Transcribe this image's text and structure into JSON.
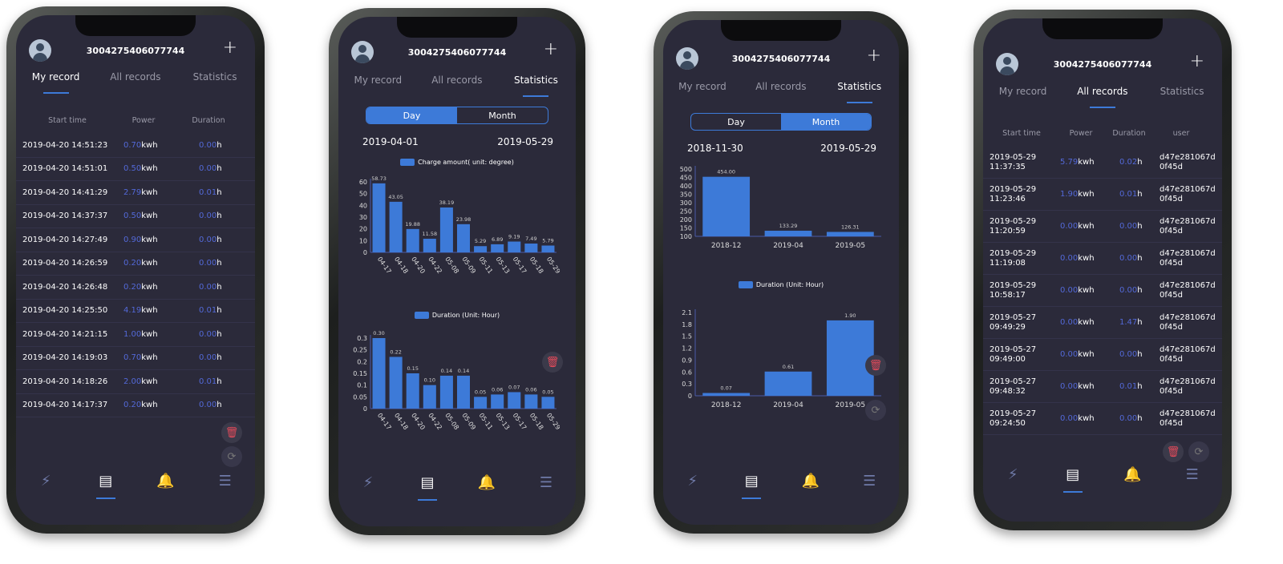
{
  "colors": {
    "accent": "#3d7ad8",
    "value_blue": "#5369d8",
    "screen_bg": "#2b2a3a",
    "delete": "#e34b5b"
  },
  "header": {
    "title": "3004275406077744",
    "add_label": "+",
    "avatar_icon": "user-avatar-icon"
  },
  "tabs": [
    "My record",
    "All records",
    "Statistics"
  ],
  "segment": [
    "Day",
    "Month"
  ],
  "nav_icons": [
    "lightning-icon",
    "record-icon",
    "bell-icon",
    "menu-icon"
  ],
  "units": {
    "power": "kwh",
    "duration": "h"
  },
  "phones": [
    {
      "active_tab": 0,
      "columns": [
        "Start time",
        "Power",
        "Duration"
      ],
      "rows": [
        [
          "2019-04-20 14:51:23",
          "0.70",
          "0.00"
        ],
        [
          "2019-04-20 14:51:01",
          "0.50",
          "0.00"
        ],
        [
          "2019-04-20 14:41:29",
          "2.79",
          "0.01"
        ],
        [
          "2019-04-20 14:37:37",
          "0.50",
          "0.00"
        ],
        [
          "2019-04-20 14:27:49",
          "0.90",
          "0.00"
        ],
        [
          "2019-04-20 14:26:59",
          "0.20",
          "0.00"
        ],
        [
          "2019-04-20 14:26:48",
          "0.20",
          "0.00"
        ],
        [
          "2019-04-20 14:25:50",
          "4.19",
          "0.01"
        ],
        [
          "2019-04-20 14:21:15",
          "1.00",
          "0.00"
        ],
        [
          "2019-04-20 14:19:03",
          "0.70",
          "0.00"
        ],
        [
          "2019-04-20 14:18:26",
          "2.00",
          "0.01"
        ],
        [
          "2019-04-20 14:17:37",
          "0.20",
          "0.00"
        ]
      ]
    },
    {
      "active_tab": 2,
      "active_segment": 0,
      "date_from": "2019-04-01",
      "date_to": "2019-05-29"
    },
    {
      "active_tab": 2,
      "active_segment": 1,
      "date_from": "2018-11-30",
      "date_to": "2019-05-29"
    },
    {
      "active_tab": 1,
      "columns": [
        "Start time",
        "Power",
        "Duration",
        "user"
      ],
      "rows": [
        [
          "2019-05-29",
          "11:37:35",
          "5.79",
          "0.02",
          "d47e281067d",
          "0f45d"
        ],
        [
          "2019-05-29",
          "11:23:46",
          "1.90",
          "0.01",
          "d47e281067d",
          "0f45d"
        ],
        [
          "2019-05-29",
          "11:20:59",
          "0.00",
          "0.00",
          "d47e281067d",
          "0f45d"
        ],
        [
          "2019-05-29",
          "11:19:08",
          "0.00",
          "0.00",
          "d47e281067d",
          "0f45d"
        ],
        [
          "2019-05-29",
          "10:58:17",
          "0.00",
          "0.00",
          "d47e281067d",
          "0f45d"
        ],
        [
          "2019-05-27",
          "09:49:29",
          "0.00",
          "1.47",
          "d47e281067d",
          "0f45d"
        ],
        [
          "2019-05-27",
          "09:49:00",
          "0.00",
          "0.00",
          "d47e281067d",
          "0f45d"
        ],
        [
          "2019-05-27",
          "09:48:32",
          "0.00",
          "0.01",
          "d47e281067d",
          "0f45d"
        ],
        [
          "2019-05-27",
          "09:24:50",
          "0.00",
          "0.00",
          "d47e281067d",
          "0f45d"
        ]
      ]
    }
  ],
  "chart_data": [
    {
      "type": "bar",
      "phone": 2,
      "legend": "Charge amount( unit: degree)",
      "categories": [
        "04-17",
        "04-18",
        "04-20",
        "04-22",
        "05-08",
        "05-09",
        "05-11",
        "05-13",
        "05-17",
        "05-18",
        "05-29"
      ],
      "values": [
        58.73,
        43.05,
        19.88,
        11.58,
        38.19,
        23.98,
        5.29,
        6.89,
        9.19,
        7.49,
        5.79
      ],
      "labels": [
        "58.73",
        "43.05",
        "19.88",
        "11.58",
        "38.19",
        "23.98",
        "5.29",
        "6.89",
        "9.19",
        "7.49",
        "5.79"
      ],
      "ylim": [
        0,
        60
      ],
      "yticks": [
        "0",
        "10",
        "20",
        "30",
        "40",
        "50",
        "60"
      ],
      "grid": false
    },
    {
      "type": "bar",
      "phone": 2,
      "legend": "Duration (Unit: Hour)",
      "categories": [
        "04-17",
        "04-18",
        "04-20",
        "04-22",
        "05-08",
        "05-09",
        "05-11",
        "05-13",
        "05-17",
        "05-18",
        "05-29"
      ],
      "values": [
        0.3,
        0.22,
        0.15,
        0.1,
        0.14,
        0.14,
        0.05,
        0.06,
        0.07,
        0.06,
        0.05
      ],
      "labels": [
        "0.30",
        "0.22",
        "0.15",
        "0.10",
        "0.14",
        "0.14",
        "0.05",
        "0.06",
        "0.07",
        "0.06",
        "0.05"
      ],
      "ylim": [
        0,
        0.3
      ],
      "yticks": [
        "0",
        "0.05",
        "0.1",
        "0.15",
        "0.2",
        "0.25",
        "0.3"
      ],
      "grid": false
    },
    {
      "type": "bar",
      "phone": 3,
      "categories": [
        "2018-12",
        "2019-04",
        "2019-05"
      ],
      "values": [
        454.0,
        133.29,
        126.31
      ],
      "labels": [
        "454.00",
        "133.29",
        "126.31"
      ],
      "ylim": [
        100,
        500
      ],
      "yticks": [
        "100",
        "150",
        "200",
        "250",
        "300",
        "350",
        "400",
        "450",
        "500"
      ],
      "grid": false
    },
    {
      "type": "bar",
      "phone": 3,
      "legend": "Duration (Unit: Hour)",
      "categories": [
        "2018-12",
        "2019-04",
        "2019-05"
      ],
      "values": [
        0.07,
        0.61,
        1.9
      ],
      "labels": [
        "0.07",
        "0.61",
        "1.90"
      ],
      "ylim": [
        0,
        2.1
      ],
      "yticks": [
        "0",
        "0.3",
        "0.6",
        "0.9",
        "1.2",
        "1.5",
        "1.8",
        "2.1"
      ],
      "grid": false
    }
  ]
}
